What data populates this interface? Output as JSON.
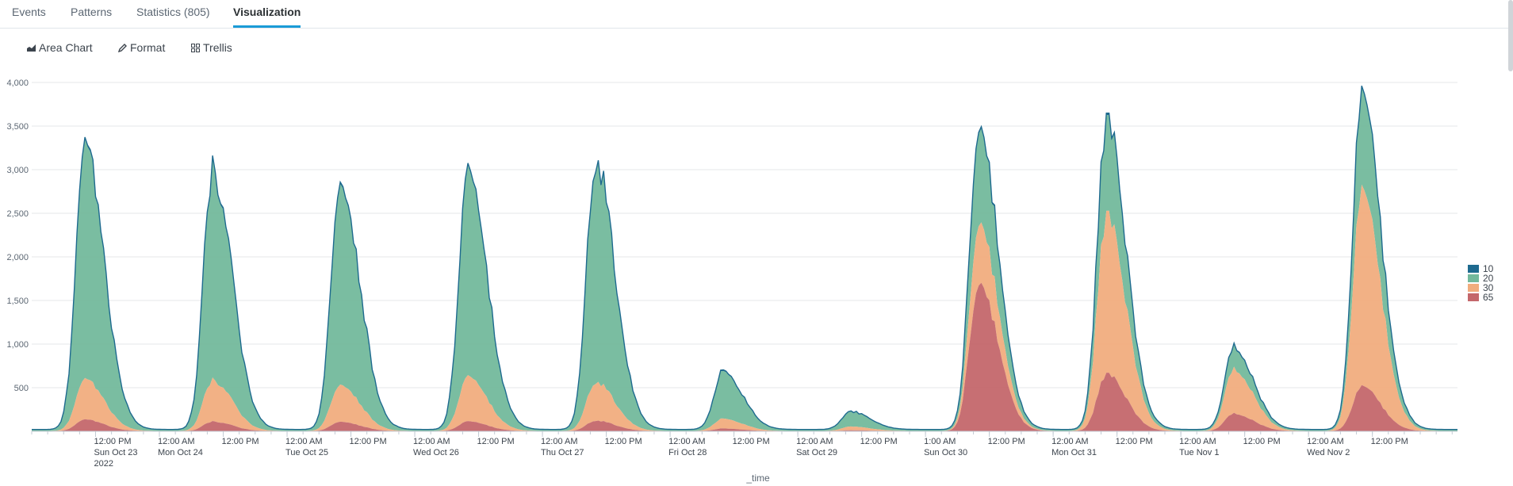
{
  "tabs": [
    {
      "label": "Events"
    },
    {
      "label": "Patterns"
    },
    {
      "label": "Statistics (805)"
    },
    {
      "label": "Visualization"
    }
  ],
  "active_tab": "Visualization",
  "toolbar": {
    "chart_type_label": "Area Chart",
    "format_label": "Format",
    "trellis_label": "Trellis"
  },
  "chart_data": {
    "type": "area",
    "stacked": true,
    "title": "",
    "xlabel": "_time",
    "ylabel": "",
    "ylim": [
      0,
      4000
    ],
    "yticks": [
      "4,000",
      "3,500",
      "3,000",
      "2,500",
      "2,000",
      "1,500",
      "1,000",
      "500"
    ],
    "grid": true,
    "legend_position": "right",
    "x_start": "2022-10-23 00:00",
    "x_end": "2022-11-03 04:00",
    "x_tick_labels": [
      [
        "12:00 PM",
        "Sun Oct 23",
        "2022"
      ],
      [
        "12:00 AM",
        "Mon Oct 24"
      ],
      [
        "12:00 PM"
      ],
      [
        "12:00 AM",
        "Tue Oct 25"
      ],
      [
        "12:00 PM"
      ],
      [
        "12:00 AM",
        "Wed Oct 26"
      ],
      [
        "12:00 PM"
      ],
      [
        "12:00 AM",
        "Thu Oct 27"
      ],
      [
        "12:00 PM"
      ],
      [
        "12:00 AM",
        "Fri Oct 28"
      ],
      [
        "12:00 PM"
      ],
      [
        "12:00 AM",
        "Sat Oct 29"
      ],
      [
        "12:00 PM"
      ],
      [
        "1:00 AM",
        "Sun Oct 30"
      ],
      [
        "12:00 PM"
      ],
      [
        "12:00 AM",
        "Mon Oct 31"
      ],
      [
        "12:00 PM"
      ],
      [
        "12:00 AM",
        "Tue Nov 1"
      ],
      [
        "12:00 PM"
      ],
      [
        "12:00 AM",
        "Wed Nov 2"
      ],
      [
        "12:00 PM"
      ]
    ],
    "series": [
      {
        "name": "10",
        "color": "#1e6a8f"
      },
      {
        "name": "20",
        "color": "#73b99c"
      },
      {
        "name": "30",
        "color": "#f1ad7e"
      },
      {
        "name": "65",
        "color": "#c4676b"
      }
    ],
    "daily_peaks": [
      {
        "date": "2022-10-23",
        "s65": 130,
        "s30": 450,
        "s20": 2600,
        "s10": 20
      },
      {
        "date": "2022-10-24",
        "s65": 110,
        "s30": 470,
        "s20": 2370,
        "s10": 20
      },
      {
        "date": "2022-10-25",
        "s65": 110,
        "s30": 430,
        "s20": 2320,
        "s10": 20
      },
      {
        "date": "2022-10-26",
        "s65": 110,
        "s30": 500,
        "s20": 2280,
        "s10": 20
      },
      {
        "date": "2022-10-27",
        "s65": 120,
        "s30": 440,
        "s20": 2490,
        "s10": 20
      },
      {
        "date": "2022-10-28",
        "s65": 30,
        "s30": 110,
        "s20": 520,
        "s10": 10
      },
      {
        "date": "2022-10-29",
        "s65": 10,
        "s30": 40,
        "s20": 150,
        "s10": 5
      },
      {
        "date": "2022-10-30",
        "s65": 1700,
        "s30": 690,
        "s20": 1060,
        "s10": 20
      },
      {
        "date": "2022-10-31",
        "s65": 650,
        "s30": 1800,
        "s20": 1050,
        "s10": 20
      },
      {
        "date": "2022-11-01",
        "s65": 200,
        "s30": 500,
        "s20": 230,
        "s10": 10
      },
      {
        "date": "2022-11-02",
        "s65": 500,
        "s30": 2180,
        "s20": 1040,
        "s10": 20
      }
    ]
  }
}
